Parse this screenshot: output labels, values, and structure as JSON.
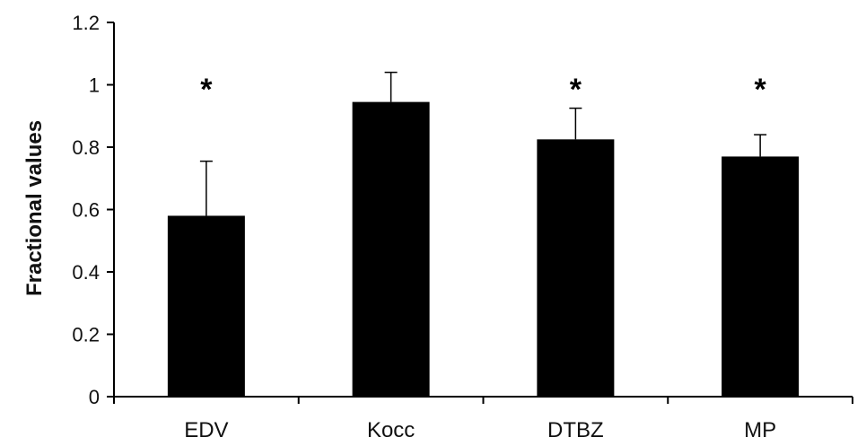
{
  "chart_data": {
    "type": "bar",
    "title": "",
    "xlabel": "",
    "ylabel": "Fractional values",
    "ylim": [
      0,
      1.2
    ],
    "yticks": [
      0,
      0.2,
      0.4,
      0.6,
      0.8,
      1,
      1.2
    ],
    "ytick_labels": [
      "0",
      "0.2",
      "0.4",
      "0.6",
      "0.8",
      "1",
      "1.2"
    ],
    "categories": [
      "EDV",
      "Kocc",
      "DTBZ",
      "MP"
    ],
    "values": [
      0.58,
      0.945,
      0.825,
      0.77
    ],
    "error_upper": [
      0.175,
      0.095,
      0.1,
      0.07
    ],
    "annotations": [
      "*",
      "",
      "*",
      "*"
    ],
    "bar_color": "#000000",
    "grid": false
  }
}
